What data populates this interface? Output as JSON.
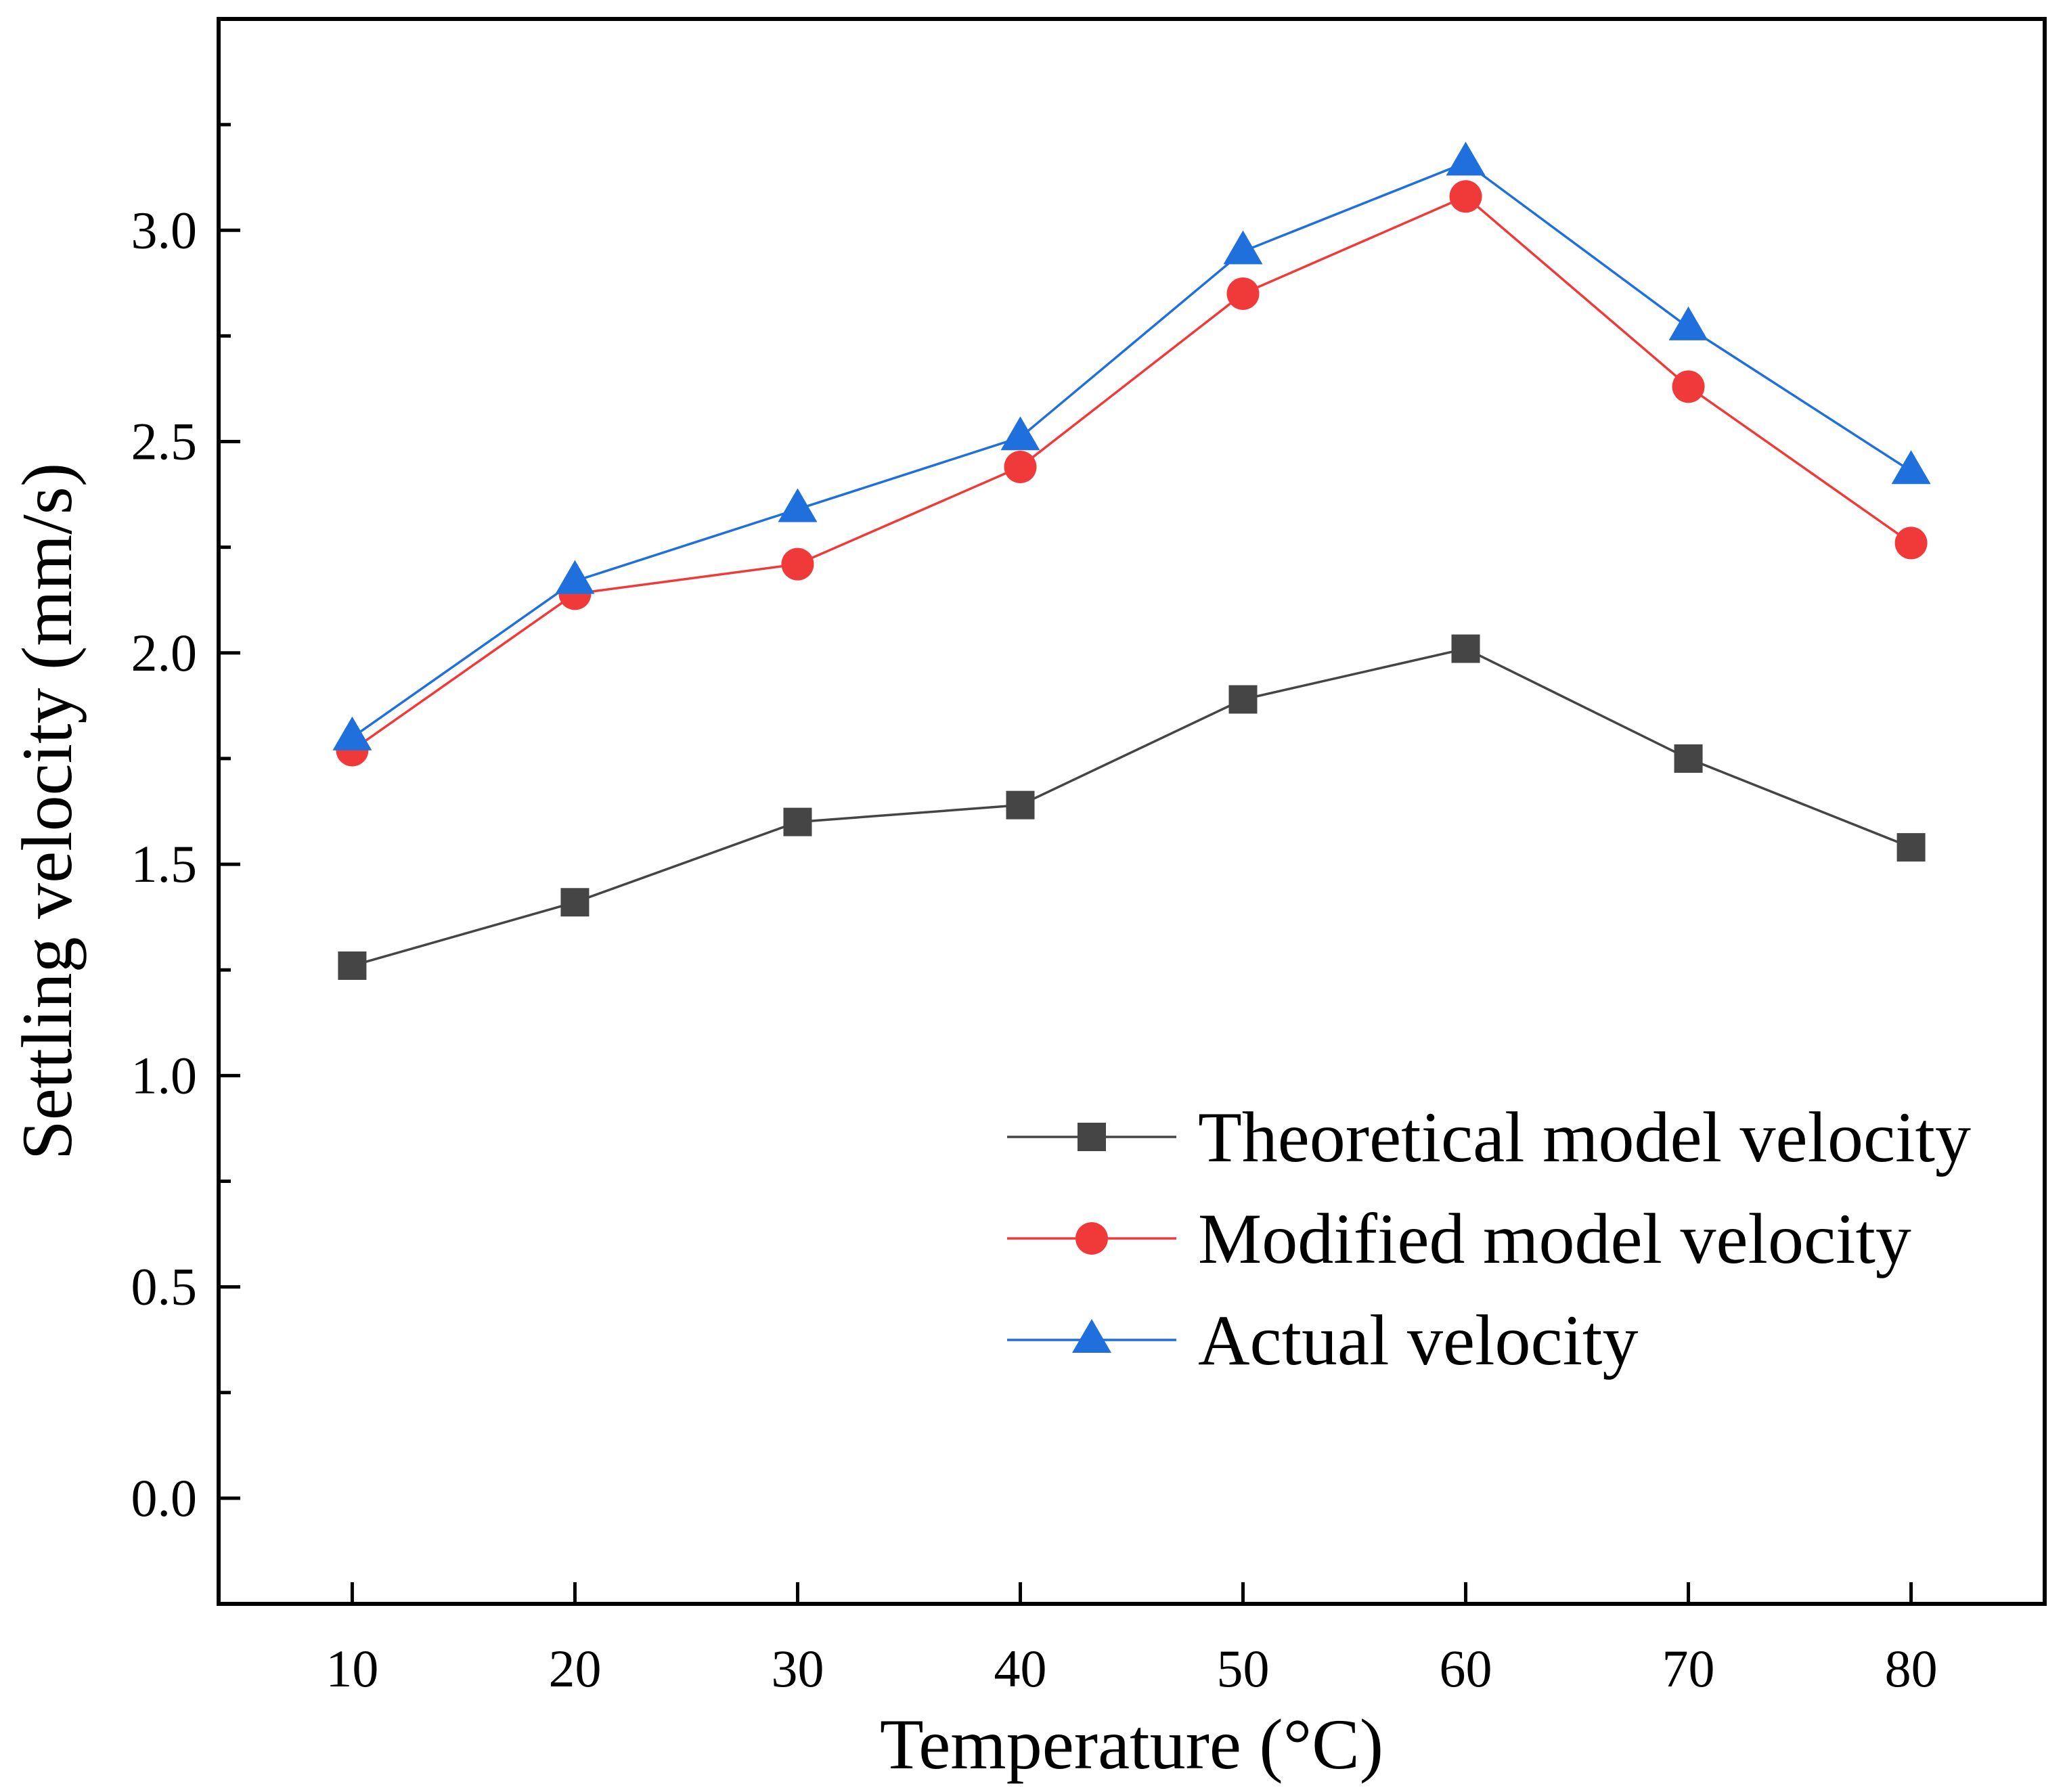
{
  "chart_data": {
    "type": "line",
    "title": "",
    "xlabel": "Temperature (°C)",
    "ylabel": "Settling velocity (mm/s)",
    "x": [
      10,
      20,
      30,
      40,
      50,
      60,
      70,
      80
    ],
    "xticks": [
      "10",
      "20",
      "30",
      "40",
      "50",
      "60",
      "70",
      "80"
    ],
    "yticks": [
      "0.0",
      "0.5",
      "1.0",
      "1.5",
      "2.0",
      "2.5",
      "3.0"
    ],
    "ylim": [
      -0.25,
      3.5
    ],
    "xlim": [
      4,
      86
    ],
    "grid": false,
    "legend_position": "bottom-right",
    "series": [
      {
        "name": "Theoretical model velocity",
        "marker": "square",
        "color": "#454545",
        "values": [
          1.26,
          1.41,
          1.6,
          1.64,
          1.89,
          2.01,
          1.75,
          1.54
        ]
      },
      {
        "name": "Modified model velocity",
        "marker": "circle",
        "color": "#f03a3a",
        "values": [
          1.77,
          2.14,
          2.21,
          2.44,
          2.85,
          3.08,
          2.63,
          2.26
        ]
      },
      {
        "name": "Actual velocity",
        "marker": "triangle",
        "color": "#1f6fdc",
        "values": [
          1.8,
          2.17,
          2.34,
          2.51,
          2.95,
          3.16,
          2.77,
          2.43
        ]
      }
    ]
  }
}
